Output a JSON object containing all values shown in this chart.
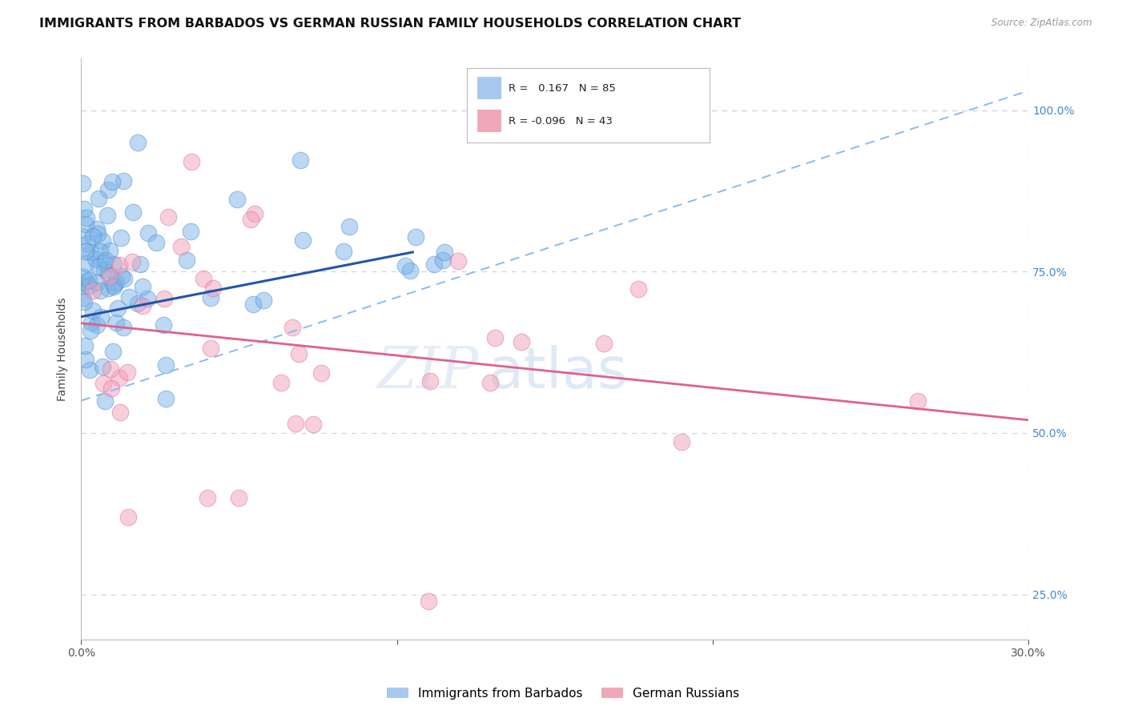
{
  "title": "IMMIGRANTS FROM BARBADOS VS GERMAN RUSSIAN FAMILY HOUSEHOLDS CORRELATION CHART",
  "source": "Source: ZipAtlas.com",
  "ylabel": "Family Households",
  "y_ticks": [
    25.0,
    50.0,
    75.0,
    100.0
  ],
  "y_tick_labels": [
    "25.0%",
    "50.0%",
    "75.0%",
    "100.0%"
  ],
  "xlim": [
    0.0,
    30.0
  ],
  "ylim": [
    18.0,
    108.0
  ],
  "series_blue": {
    "name": "Immigrants from Barbados",
    "color": "#7ab3e8",
    "edge_color": "#5090d0",
    "alpha": 0.5,
    "R": 0.167,
    "N": 85,
    "trend_color": "#2255aa",
    "trend_dash_color": "#88bbee"
  },
  "series_pink": {
    "name": "German Russians",
    "color": "#f0a0b8",
    "edge_color": "#e070a0",
    "alpha": 0.5,
    "R": -0.096,
    "N": 43,
    "trend_color": "#e06090"
  },
  "watermark_zip": "ZIP",
  "watermark_atlas": "atlas",
  "background_color": "#ffffff",
  "grid_color": "#c8d8ea",
  "title_fontsize": 11.5,
  "axis_label_fontsize": 10,
  "tick_fontsize": 10,
  "legend_r_blue": "R =   0.167   N = 85",
  "legend_r_pink": "R = -0.096   N = 43"
}
